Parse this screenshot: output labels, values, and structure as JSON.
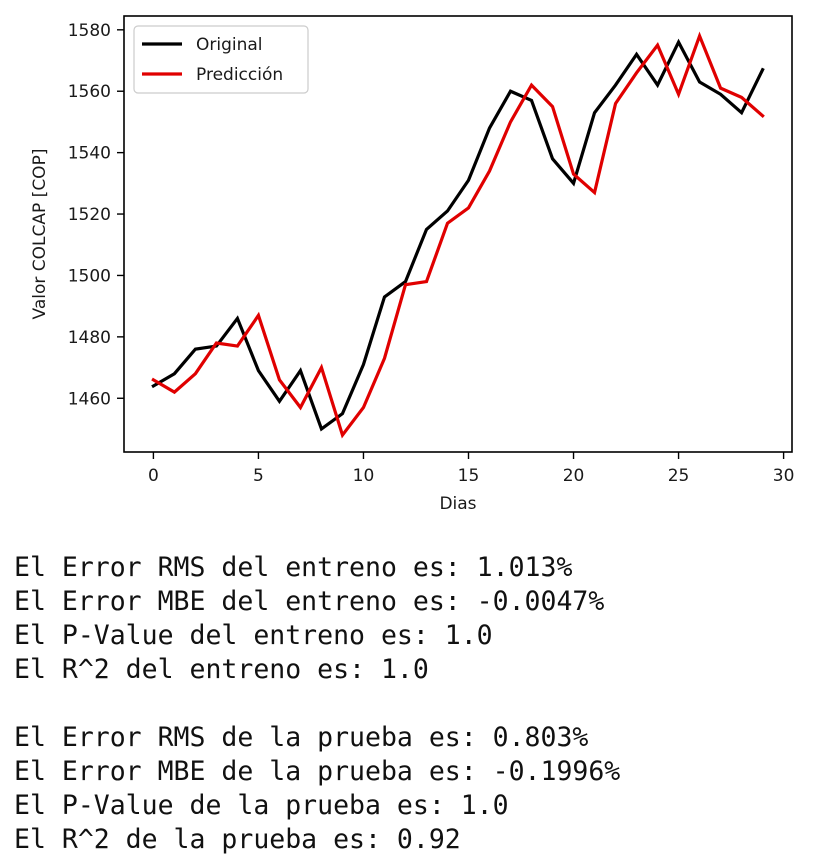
{
  "chart_data": {
    "type": "line",
    "xlabel": "Dias",
    "ylabel": "Valor COLCAP [COP]",
    "xlim": [
      -1.4,
      30.4
    ],
    "ylim": [
      1442.5,
      1584.5
    ],
    "x_ticks": [
      0,
      5,
      10,
      15,
      20,
      25,
      30
    ],
    "y_ticks": [
      1460,
      1480,
      1500,
      1520,
      1540,
      1560,
      1580
    ],
    "grid": false,
    "legend_position": "upper-left",
    "series": [
      {
        "name": "Original",
        "color": "#000000",
        "x": [
          0,
          1,
          2,
          3,
          4,
          5,
          6,
          7,
          8,
          9,
          10,
          11,
          12,
          13,
          14,
          15,
          16,
          17,
          18,
          19,
          20,
          21,
          22,
          23,
          24,
          25,
          26,
          27,
          28,
          29
        ],
        "values": [
          1464,
          1468,
          1476,
          1477,
          1486,
          1469,
          1459,
          1469,
          1450,
          1455,
          1471,
          1493,
          1498,
          1515,
          1521,
          1531,
          1548,
          1560,
          1557,
          1538,
          1530,
          1553,
          1562,
          1572,
          1562,
          1576,
          1563,
          1559,
          1553,
          1567
        ]
      },
      {
        "name": "Predicción",
        "color": "#e00000",
        "x": [
          0,
          1,
          2,
          3,
          4,
          5,
          6,
          7,
          8,
          9,
          10,
          11,
          12,
          13,
          14,
          15,
          16,
          17,
          18,
          19,
          20,
          21,
          22,
          23,
          24,
          25,
          26,
          27,
          28,
          29
        ],
        "values": [
          1466,
          1462,
          1468,
          1478,
          1477,
          1487,
          1466,
          1457,
          1470,
          1448,
          1457,
          1473,
          1497,
          1498,
          1517,
          1522,
          1534,
          1550,
          1562,
          1555,
          1533,
          1527,
          1556,
          1566,
          1575,
          1559,
          1578,
          1561,
          1558,
          1552
        ]
      }
    ]
  },
  "output": {
    "train": [
      "El Error RMS del entreno es: 1.013%",
      "El Error MBE del entreno es: -0.0047%",
      "El P-Value del entreno es: 1.0",
      "El R^2 del entreno es: 1.0"
    ],
    "test": [
      "El Error RMS de la prueba es: 0.803%",
      "El Error MBE de la prueba es: -0.1996%",
      "El P-Value de la prueba es: 1.0",
      "El R^2 de la prueba es: 0.92"
    ]
  }
}
